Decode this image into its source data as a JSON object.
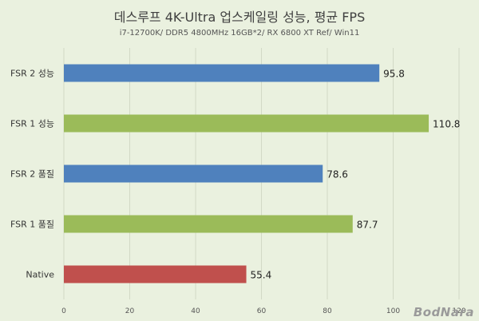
{
  "chart_data": {
    "type": "bar",
    "orientation": "horizontal",
    "title": "데스루프 4K-Ultra 업스케일링 성능, 평균 FPS",
    "subtitle": "i7-12700K/ DDR5 4800MHz 16GB*2/ RX 6800 XT Ref/ Win11",
    "categories": [
      "FSR 2 성능",
      "FSR 1 성능",
      "FSR 2 품질",
      "FSR 1 품질",
      "Native"
    ],
    "values": [
      95.8,
      110.8,
      78.6,
      87.7,
      55.4
    ],
    "bar_colors": [
      "#4f81bd",
      "#9bbb59",
      "#4f81bd",
      "#9bbb59",
      "#c0504d"
    ],
    "xlim": [
      0,
      120
    ],
    "xticks": [
      0,
      20,
      40,
      60,
      80,
      100,
      120
    ],
    "grid": true,
    "legend": "none"
  },
  "watermark": "BodNara"
}
